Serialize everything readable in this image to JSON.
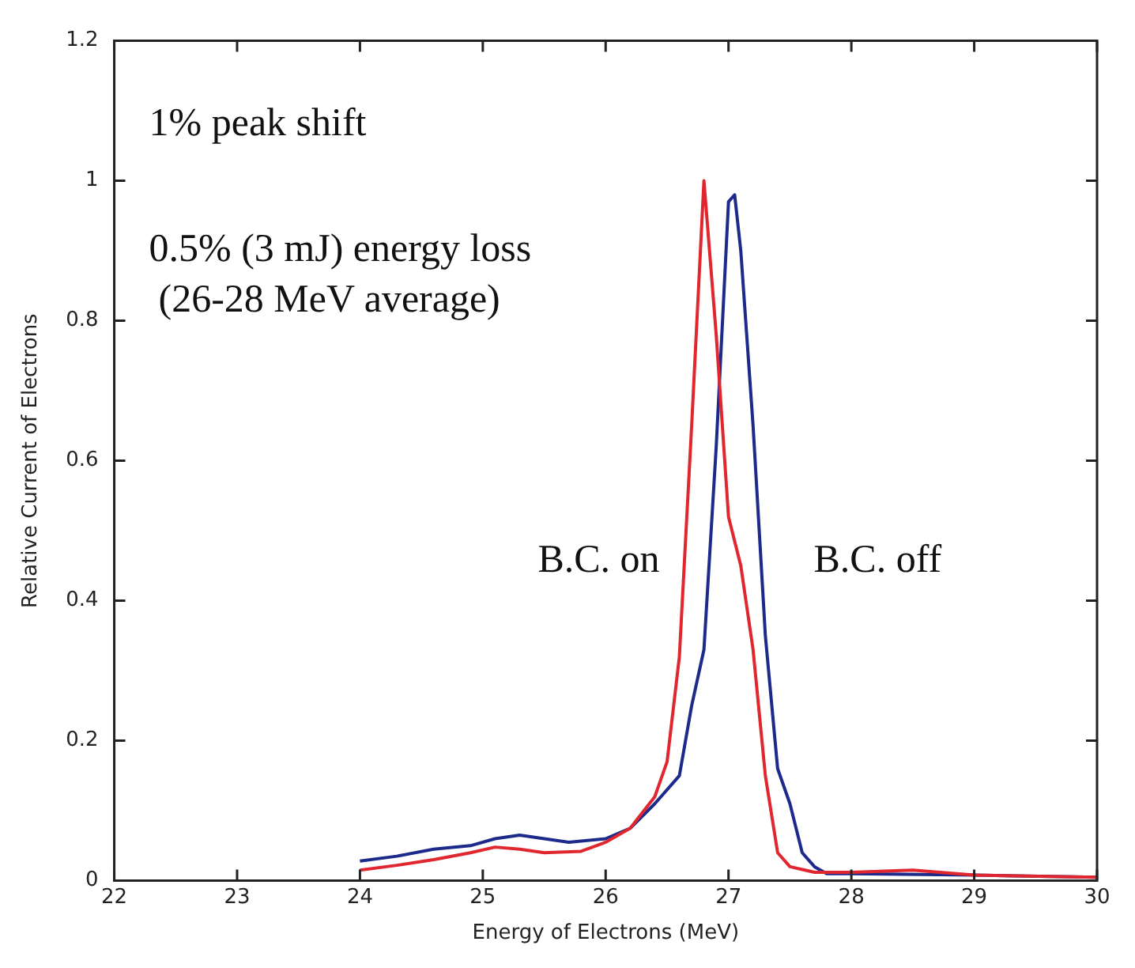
{
  "chart_data": {
    "type": "line",
    "xlabel": "Energy of Electrons (MeV)",
    "ylabel": "Relative Current of Electrons",
    "xlim": [
      22,
      30
    ],
    "xticks": [
      22,
      23,
      24,
      25,
      26,
      27,
      28,
      29,
      30
    ],
    "ylim": [
      0,
      1.2
    ],
    "yticks": [
      0,
      0.2,
      0.4,
      0.6,
      0.8,
      1,
      1.2
    ],
    "legend": false,
    "marker": "none",
    "line_style": "solid",
    "annotations": [
      "1% peak shift",
      "0.5% (3 mJ) energy loss",
      "(26-28 MeV average)"
    ],
    "series": [
      {
        "name": "B.C. on",
        "color": "#e0262e",
        "x": [
          24.0,
          24.3,
          24.6,
          24.9,
          25.1,
          25.3,
          25.5,
          25.8,
          26.0,
          26.2,
          26.4,
          26.5,
          26.6,
          26.7,
          26.8,
          26.9,
          27.0,
          27.1,
          27.2,
          27.3,
          27.4,
          27.5,
          27.7,
          28.0,
          28.5,
          29.0,
          30.0
        ],
        "values": [
          0.015,
          0.022,
          0.03,
          0.04,
          0.048,
          0.045,
          0.04,
          0.042,
          0.055,
          0.075,
          0.12,
          0.17,
          0.32,
          0.65,
          1.0,
          0.78,
          0.52,
          0.45,
          0.33,
          0.15,
          0.04,
          0.02,
          0.012,
          0.012,
          0.015,
          0.008,
          0.005
        ]
      },
      {
        "name": "B.C. off",
        "color": "#1c2a8c",
        "x": [
          24.0,
          24.3,
          24.6,
          24.9,
          25.1,
          25.3,
          25.5,
          25.7,
          26.0,
          26.2,
          26.4,
          26.6,
          26.7,
          26.8,
          26.9,
          27.0,
          27.05,
          27.1,
          27.2,
          27.3,
          27.4,
          27.5,
          27.6,
          27.7,
          27.8,
          28.0,
          29.0,
          30.0
        ],
        "values": [
          0.028,
          0.035,
          0.045,
          0.05,
          0.06,
          0.065,
          0.06,
          0.055,
          0.06,
          0.075,
          0.11,
          0.15,
          0.25,
          0.33,
          0.62,
          0.97,
          0.98,
          0.9,
          0.65,
          0.35,
          0.16,
          0.11,
          0.04,
          0.02,
          0.01,
          0.01,
          0.008,
          0.005
        ]
      }
    ]
  }
}
